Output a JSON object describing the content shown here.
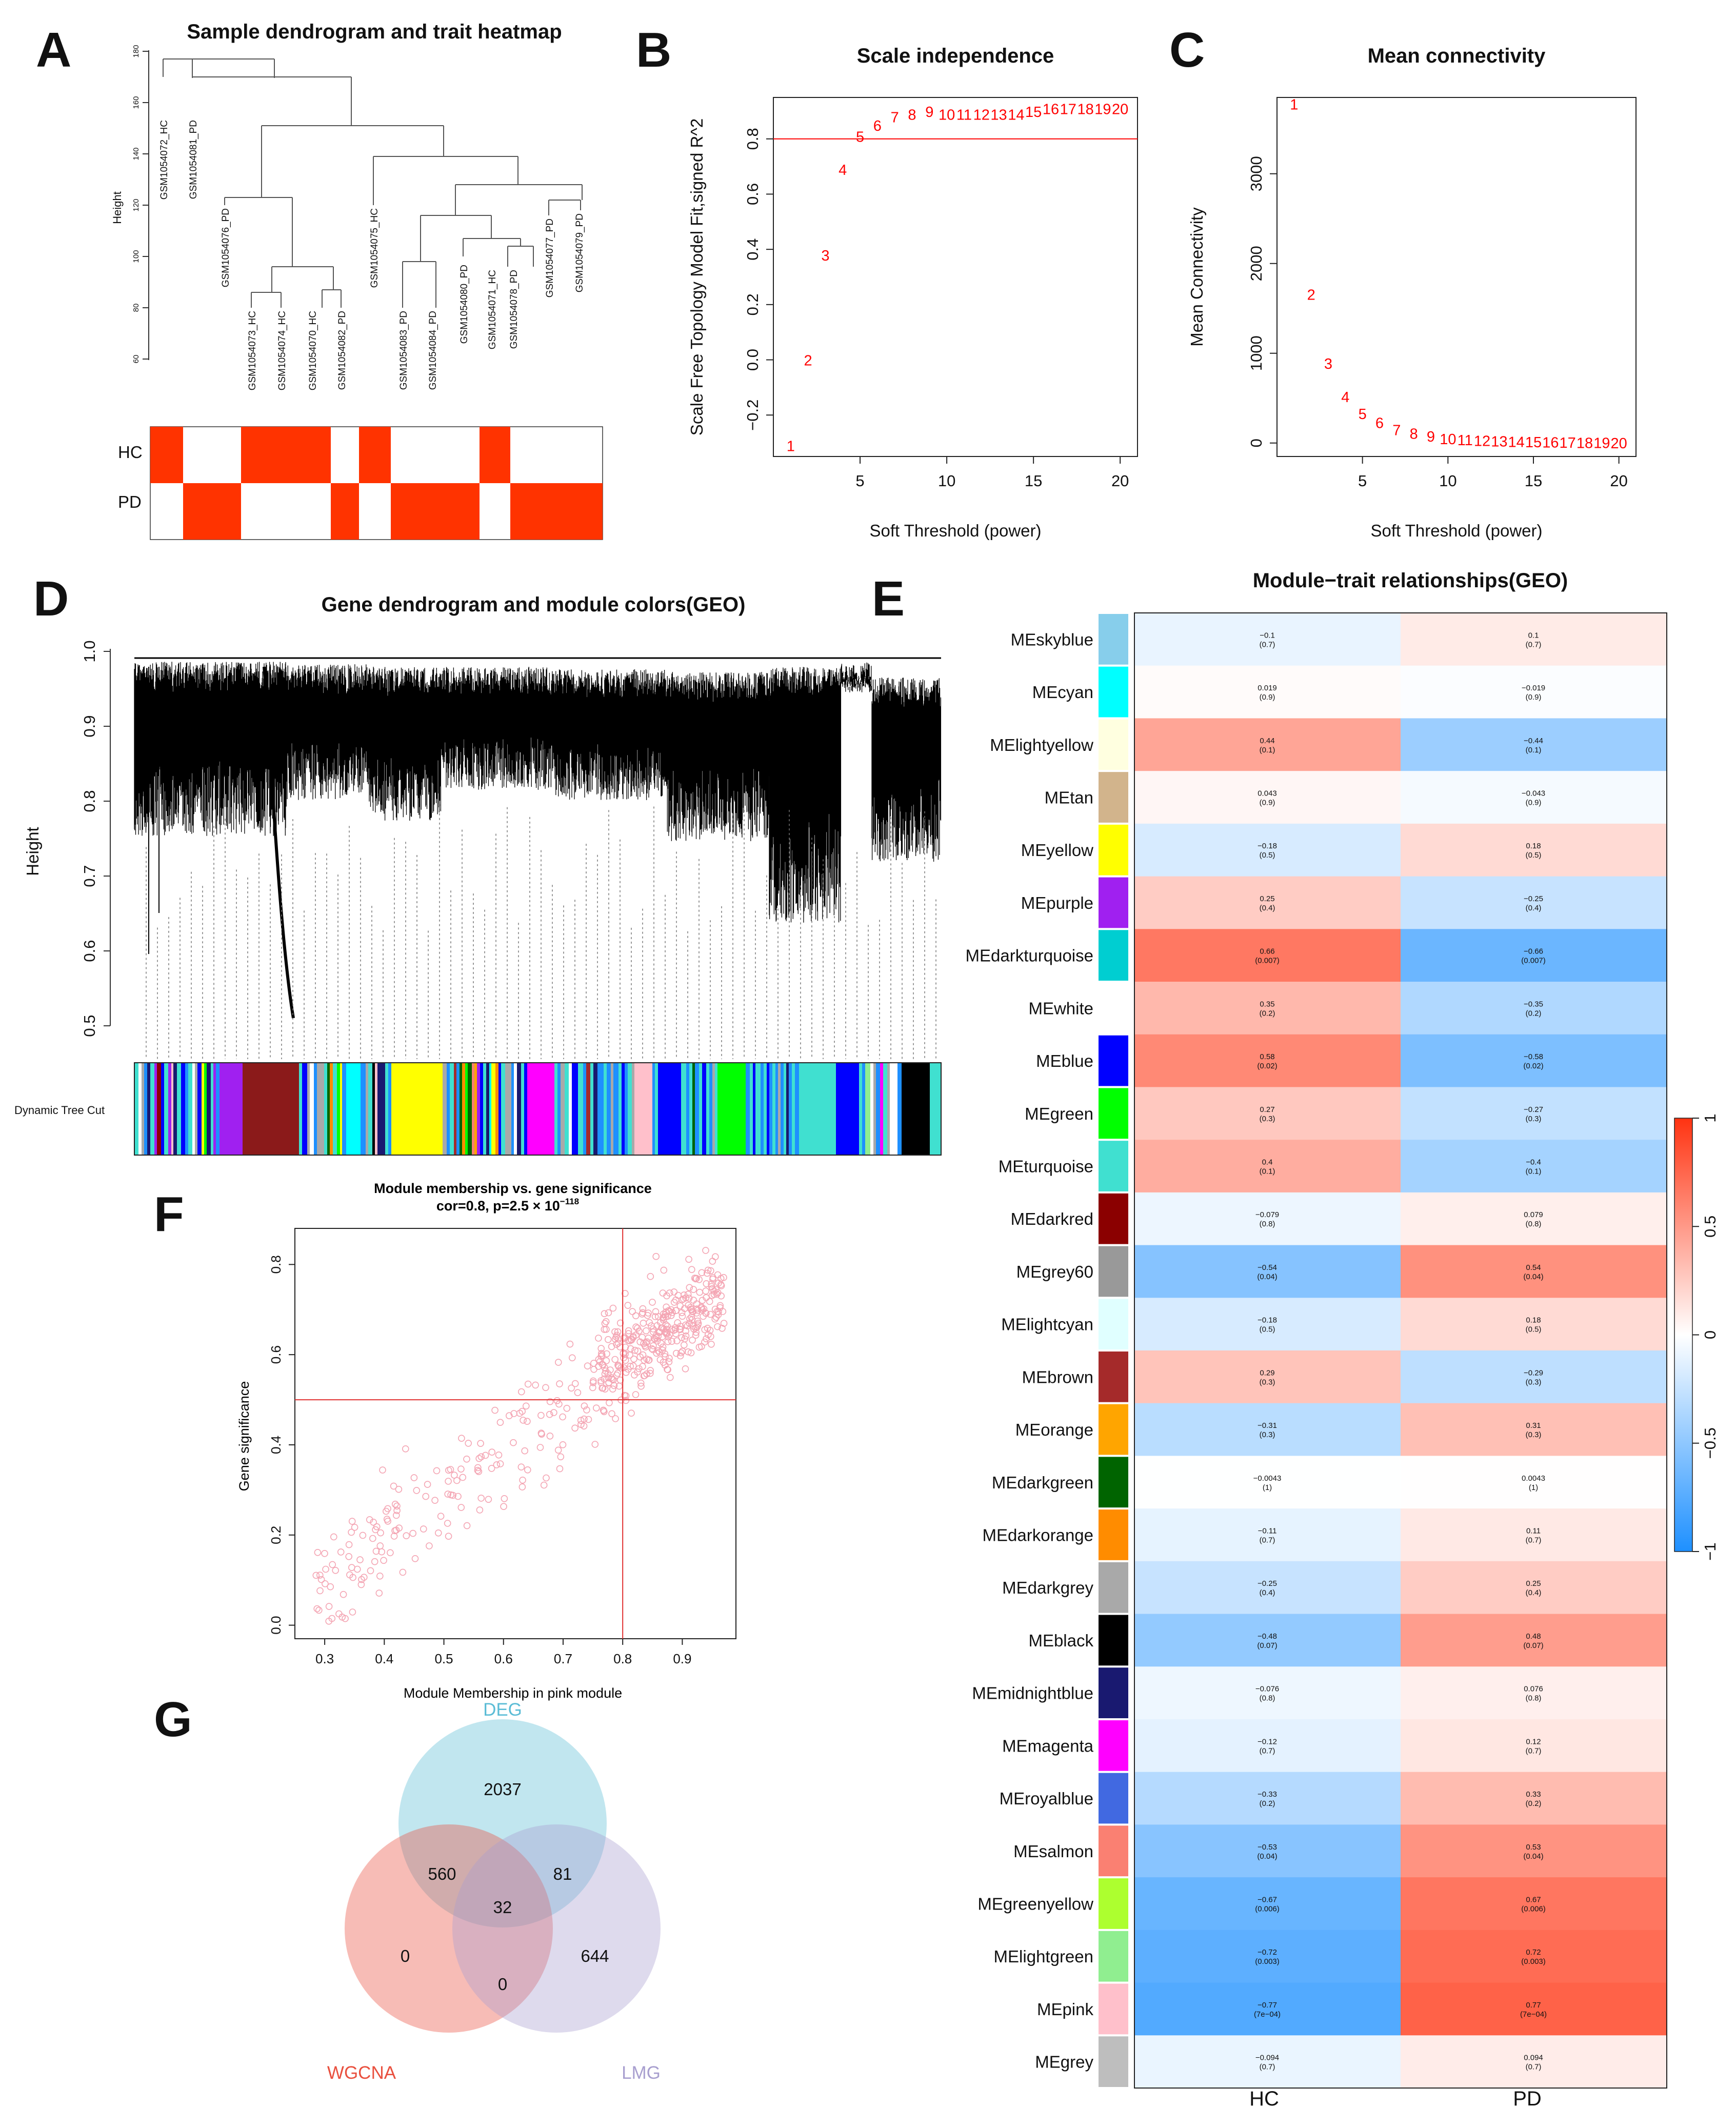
{
  "panels": {
    "A": "A",
    "B": "B",
    "C": "C",
    "D": "D",
    "E": "E",
    "F": "F",
    "G": "G"
  },
  "panel_a": {
    "title": "Sample dendrogram and trait heatmap",
    "ylabel": "Height",
    "yticks": [
      "180",
      "160",
      "140",
      "120",
      "100",
      "80",
      "60"
    ],
    "samples": [
      "GSM1054072_HC",
      "GSM1054081_PD",
      "GSM1054076_PD",
      "GSM1054073_HC",
      "GSM1054074_HC",
      "GSM1054070_HC",
      "GSM1054082_PD",
      "GSM1054075_HC",
      "GSM1054083_PD",
      "GSM1054084_PD",
      "GSM1054080_PD",
      "GSM1054071_HC",
      "GSM1054078_PD",
      "GSM1054077_PD",
      "GSM1054079_PD"
    ],
    "traits": [
      "HC",
      "PD"
    ],
    "colors": {
      "on": "#ff3300",
      "off": "#ffffff"
    }
  },
  "panel_d": {
    "title": "Gene dendrogram and module colors(GEO)",
    "ylabel": "Height",
    "yticks": [
      "1.0",
      "0.9",
      "0.8",
      "0.7",
      "0.6",
      "0.5"
    ],
    "colorbar_label": "Dynamic Tree Cut"
  },
  "panel_e": {
    "title": "Module−trait relationships(GEO)",
    "colorbar_ticks": [
      "1",
      "0.5",
      "0",
      "−0.5",
      "−1"
    ]
  },
  "panel_g": {
    "venn": {
      "sets": [
        "DEG",
        "WGCNA",
        "LMG"
      ],
      "regions": {
        "deg_only": "2037",
        "deg_wgcna": "560",
        "deg_lmg": "81",
        "all_three": "32",
        "wgcna_only": "0",
        "wgcna_lmg": "0",
        "lmg_only": "644"
      },
      "colors": {
        "DEG": "#5bbcd6",
        "WGCNA": "#e9503e",
        "LMG": "#a89fcf"
      }
    }
  },
  "chart_data": [
    {
      "id": "B",
      "type": "scatter",
      "title": "Scale independence",
      "xlabel": "Soft Threshold (power)",
      "ylabel": "Scale Free Topology Model Fit,signed R^2",
      "xlim": [
        0,
        21
      ],
      "ylim": [
        -0.35,
        0.95
      ],
      "xticks": [
        5,
        10,
        15,
        20
      ],
      "yticks": [
        -0.2,
        0.0,
        0.2,
        0.4,
        0.6,
        0.8
      ],
      "x": [
        1,
        2,
        3,
        4,
        5,
        6,
        7,
        8,
        9,
        10,
        11,
        12,
        13,
        14,
        15,
        16,
        17,
        18,
        19,
        20
      ],
      "y": [
        -0.31,
        0.0,
        0.38,
        0.69,
        0.81,
        0.85,
        0.88,
        0.89,
        0.9,
        0.89,
        0.89,
        0.89,
        0.89,
        0.89,
        0.9,
        0.91,
        0.91,
        0.91,
        0.91,
        0.91
      ],
      "hline": 0.8,
      "colors": {
        "points": "#ff0000",
        "hline": "#ff0000"
      }
    },
    {
      "id": "C",
      "type": "scatter",
      "title": "Mean connectivity",
      "xlabel": "Soft Threshold (power)",
      "ylabel": "Mean Connectivity",
      "xlim": [
        0,
        21
      ],
      "ylim": [
        -150,
        3850
      ],
      "xticks": [
        5,
        10,
        15,
        20
      ],
      "yticks": [
        0,
        1000,
        2000,
        3000
      ],
      "x": [
        1,
        2,
        3,
        4,
        5,
        6,
        7,
        8,
        9,
        10,
        11,
        12,
        13,
        14,
        15,
        16,
        17,
        18,
        19,
        20
      ],
      "y": [
        3780,
        1660,
        890,
        520,
        330,
        230,
        150,
        110,
        80,
        50,
        40,
        30,
        25,
        20,
        15,
        12,
        10,
        8,
        6,
        5
      ],
      "colors": {
        "points": "#ff0000"
      }
    },
    {
      "id": "E",
      "type": "heatmap",
      "title": "Module−trait relationships(GEO)",
      "columns": [
        "HC",
        "PD"
      ],
      "rows": [
        "MEskyblue",
        "MEcyan",
        "MElightyellow",
        "MEtan",
        "MEyellow",
        "MEpurple",
        "MEdarkturquoise",
        "MEwhite",
        "MEblue",
        "MEgreen",
        "MEturquoise",
        "MEdarkred",
        "MEgrey60",
        "MElightcyan",
        "MEbrown",
        "MEorange",
        "MEdarkgreen",
        "MEdarkorange",
        "MEdarkgrey",
        "MEblack",
        "MEmidnightblue",
        "MEmagenta",
        "MEroyalblue",
        "MEsalmon",
        "MEgreenyellow",
        "MElightgreen",
        "MEpink",
        "MEgrey"
      ],
      "row_colors": [
        "#87ceeb",
        "#00ffff",
        "#ffffe0",
        "#d2b48c",
        "#ffff00",
        "#a020f0",
        "#00ced1",
        "#ffffff",
        "#0000ff",
        "#00ff00",
        "#40e0d0",
        "#8b0000",
        "#999999",
        "#e0ffff",
        "#a52a2a",
        "#ffa500",
        "#006400",
        "#ff8c00",
        "#a9a9a9",
        "#000000",
        "#191970",
        "#ff00ff",
        "#4169e1",
        "#fa8072",
        "#adff2f",
        "#90ee90",
        "#ffc0cb",
        "#bebebe"
      ],
      "hc_values": [
        -0.1,
        0.019,
        0.44,
        0.043,
        -0.18,
        0.25,
        0.66,
        0.35,
        0.58,
        0.27,
        0.4,
        -0.079,
        -0.54,
        -0.18,
        0.29,
        -0.31,
        -0.0043,
        -0.11,
        -0.25,
        -0.48,
        -0.076,
        -0.12,
        -0.33,
        -0.53,
        -0.67,
        -0.72,
        -0.77,
        -0.094
      ],
      "hc_labels": [
        "−0.1",
        "0.019",
        "0.44",
        "0.043",
        "−0.18",
        "0.25",
        "0.66",
        "0.35",
        "0.58",
        "0.27",
        "0.4",
        "−0.079",
        "−0.54",
        "−0.18",
        "0.29",
        "−0.31",
        "−0.0043",
        "−0.11",
        "−0.25",
        "−0.48",
        "−0.076",
        "−0.12",
        "−0.33",
        "−0.53",
        "−0.67",
        "−0.72",
        "−0.77",
        "−0.094"
      ],
      "pd_labels": [
        "0.1",
        "−0.019",
        "−0.44",
        "−0.043",
        "0.18",
        "−0.25",
        "−0.66",
        "−0.35",
        "−0.58",
        "−0.27",
        "−0.4",
        "0.079",
        "0.54",
        "0.18",
        "−0.29",
        "0.31",
        "0.0043",
        "0.11",
        "0.25",
        "0.48",
        "0.076",
        "0.12",
        "0.33",
        "0.53",
        "0.67",
        "0.72",
        "0.77",
        "0.094"
      ],
      "pvalues": [
        "(0.7)",
        "(0.9)",
        "(0.1)",
        "(0.9)",
        "(0.5)",
        "(0.4)",
        "(0.007)",
        "(0.2)",
        "(0.02)",
        "(0.3)",
        "(0.1)",
        "(0.8)",
        "(0.04)",
        "(0.5)",
        "(0.3)",
        "(0.3)",
        "(1)",
        "(0.7)",
        "(0.4)",
        "(0.07)",
        "(0.8)",
        "(0.7)",
        "(0.2)",
        "(0.04)",
        "(0.006)",
        "(0.003)",
        "(7e−04)",
        "(0.7)"
      ],
      "color_scale": {
        "min": -1,
        "max": 1,
        "low": "#1e90ff",
        "mid": "#ffffff",
        "high": "#ff3311"
      }
    },
    {
      "id": "F",
      "type": "scatter",
      "title": "Module membership vs. gene significance",
      "subtitle": "cor=0.8, p=2.5 × 10",
      "subtitle_exp": "−118",
      "xlabel": "Module Membership in pink module",
      "ylabel": "Gene significance",
      "xlim": [
        0.25,
        0.99
      ],
      "ylim": [
        -0.03,
        0.88
      ],
      "xticks": [
        0.3,
        0.4,
        0.5,
        0.6,
        0.7,
        0.8,
        0.9
      ],
      "yticks": [
        0.0,
        0.2,
        0.4,
        0.6,
        0.8
      ],
      "vline": 0.8,
      "hline": 0.5,
      "n_points": 520,
      "trend": {
        "cor": 0.8
      },
      "colors": {
        "points": "#f4a6b4",
        "lines": "#e03030"
      }
    }
  ]
}
